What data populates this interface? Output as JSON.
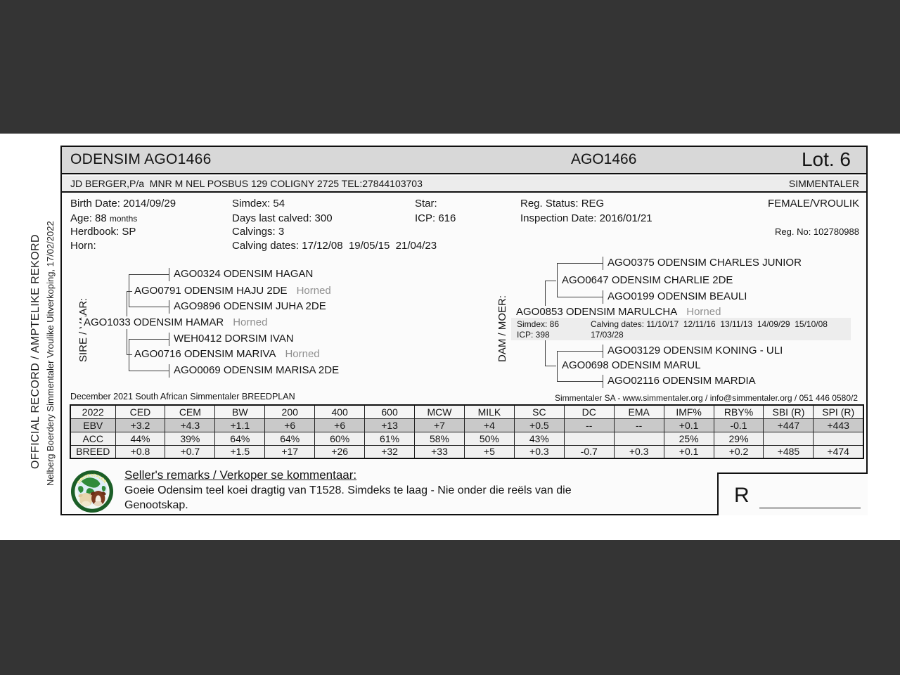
{
  "window": {
    "bar_color": "#343434",
    "page_background": "#ffffff",
    "highlight_row_color": "#c9c9c9",
    "title_bar_color": "#d8d8d8"
  },
  "margin_notes": {
    "official_record": "OFFICIAL RECORD / AMPTELIKE REKORD",
    "sale_title": "Nelberg Boerdery Simmentaler Vroulike Uitverkoping, 17/02/2022"
  },
  "header": {
    "animal_title": "ODENSIM AGO1466",
    "animal_id": "AGO1466",
    "lot": "Lot. 6",
    "owner_line": "JD BERGER,P/a  MNR M NEL POSBUS 129 COLIGNY 2725 TEL:27844103703",
    "breed": "SIMMENTALER"
  },
  "details": {
    "birth_date": "Birth Date: 2014/09/29",
    "age": "Age: 88",
    "age_unit": "months",
    "herdbook": "Herdbook: SP",
    "horn": "Horn:",
    "simdex": "Simdex: 54",
    "days_last_calved": "Days last calved: 300",
    "calvings": "Calvings: 3",
    "calving_dates": "Calving dates: 17/12/08  19/05/15  21/04/23",
    "star": "Star:",
    "icp": "ICP: 616",
    "reg_status": "Reg. Status: REG",
    "inspection_date": "Inspection Date: 2016/01/21",
    "sex": "FEMALE/VROULIK",
    "reg_no": "Reg. No: 102780988"
  },
  "pedigree": {
    "sire_label": "SIRE / VAAR:",
    "dam_label": "DAM / MOER:",
    "sire": {
      "subject": {
        "name": "AGO1033 ODENSIM HAMAR",
        "horned": "Horned"
      },
      "parents": [
        {
          "name": "AGO0791 ODENSIM HAJU 2DE",
          "horned": "Horned"
        },
        {
          "name": "AGO0716 ODENSIM MARIVA",
          "horned": "Horned"
        }
      ],
      "grandparents": [
        {
          "name": "AGO0324 ODENSIM HAGAN"
        },
        {
          "name": "AGO9896 ODENSIM JUHA 2DE"
        },
        {
          "name": "WEH0412 DORSIM IVAN"
        },
        {
          "name": "AGO0069 ODENSIM MARISA 2DE"
        }
      ]
    },
    "dam": {
      "subject": {
        "name": "AGO0853 ODENSIM MARULCHA",
        "horned": "Horned"
      },
      "stats": {
        "simdex": "Simdex: 86",
        "icp": "ICP: 398",
        "calving_dates": "Calving dates: 11/10/17  12/11/16  13/11/13  14/09/29  15/10/08",
        "calving_dates_cont": "17/03/28"
      },
      "parents": [
        {
          "name": "AGO0647 ODENSIM CHARLIE 2DE"
        },
        {
          "name": "AGO0698 ODENSIM MARUL"
        }
      ],
      "grandparents": [
        {
          "name": "AGO0375 ODENSIM CHARLES JUNIOR"
        },
        {
          "name": "AGO0199 ODENSIM BEAULI"
        },
        {
          "name": "AGO03129 ODENSIM KONING - ULI"
        },
        {
          "name": "AGO02116 ODENSIM MARDIA"
        }
      ]
    }
  },
  "breedplan": {
    "caption_left": "December 2021 South African Simmentaler BREEDPLAN",
    "caption_right": "Simmentaler SA - www.simmentaler.org / info@simmentaler.org / 051 446 0580/2",
    "columns": [
      "2022",
      "CED",
      "CEM",
      "BW",
      "200",
      "400",
      "600",
      "MCW",
      "MILK",
      "SC",
      "DC",
      "EMA",
      "IMF%",
      "RBY%",
      "SBI (R)",
      "SPI (R)"
    ],
    "rows": [
      {
        "label": "EBV",
        "values": [
          "+3.2",
          "+4.3",
          "+1.1",
          "+6",
          "+6",
          "+13",
          "+7",
          "+4",
          "+0.5",
          "--",
          "--",
          "+0.1",
          "-0.1",
          "+447",
          "+443"
        ]
      },
      {
        "label": "ACC",
        "values": [
          "44%",
          "39%",
          "64%",
          "64%",
          "60%",
          "61%",
          "58%",
          "50%",
          "43%",
          "",
          "",
          "25%",
          "29%",
          "",
          ""
        ]
      },
      {
        "label": "BREED",
        "values": [
          "+0.8",
          "+0.7",
          "+1.5",
          "+17",
          "+26",
          "+32",
          "+33",
          "+5",
          "+0.3",
          "-0.7",
          "+0.3",
          "+0.1",
          "+0.2",
          "+485",
          "+474"
        ]
      }
    ]
  },
  "remarks": {
    "heading": "Seller's remarks / Verkoper se kommentaar:",
    "line1": "Goeie Odensim teel koei dragtig van T1528. Simdeks te laag - Nie onder die reëls van die",
    "line2": "Genootskap.",
    "price_prefix": "R"
  },
  "logo": {
    "icon": "simmentaler-globe-cattle-logo"
  }
}
